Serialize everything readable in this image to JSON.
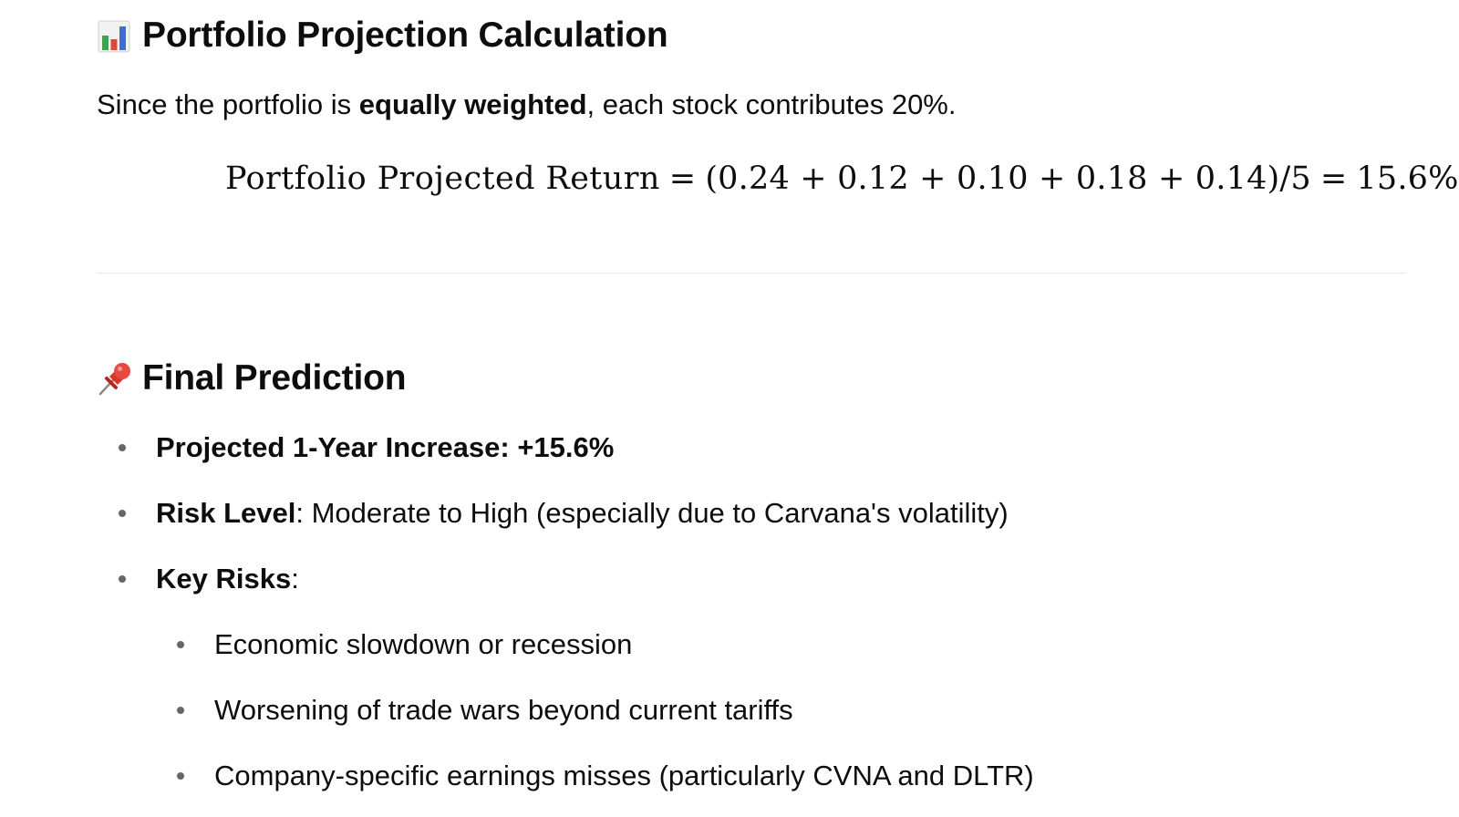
{
  "sections": {
    "calculation": {
      "icon": "bar-chart-icon",
      "title": "Portfolio Projection Calculation",
      "intro_before": "Since the portfolio is ",
      "intro_bold": "equally weighted",
      "intro_after": ", each stock contributes 20%.",
      "formula": {
        "lhs": "Portfolio Projected Return",
        "eq1": "=",
        "expression": "(0.24 + 0.12 + 0.10 + 0.18 + 0.14)/5",
        "eq2": "=",
        "result": "15.6%"
      }
    },
    "final_prediction": {
      "icon": "pushpin-icon",
      "title": "Final Prediction",
      "items": [
        {
          "label": "Projected 1-Year Increase",
          "separator": ": ",
          "value": "+15.6%"
        },
        {
          "label": "Risk Level",
          "separator": ": ",
          "value": "Moderate to High (especially due to Carvana's volatility)"
        },
        {
          "label": "Key Risks",
          "separator": ":",
          "value": ""
        }
      ],
      "key_risks": [
        "Economic slowdown or recession",
        "Worsening of trade wars beyond current tariffs",
        "Company-specific earnings misses (particularly CVNA and DLTR)"
      ]
    }
  }
}
